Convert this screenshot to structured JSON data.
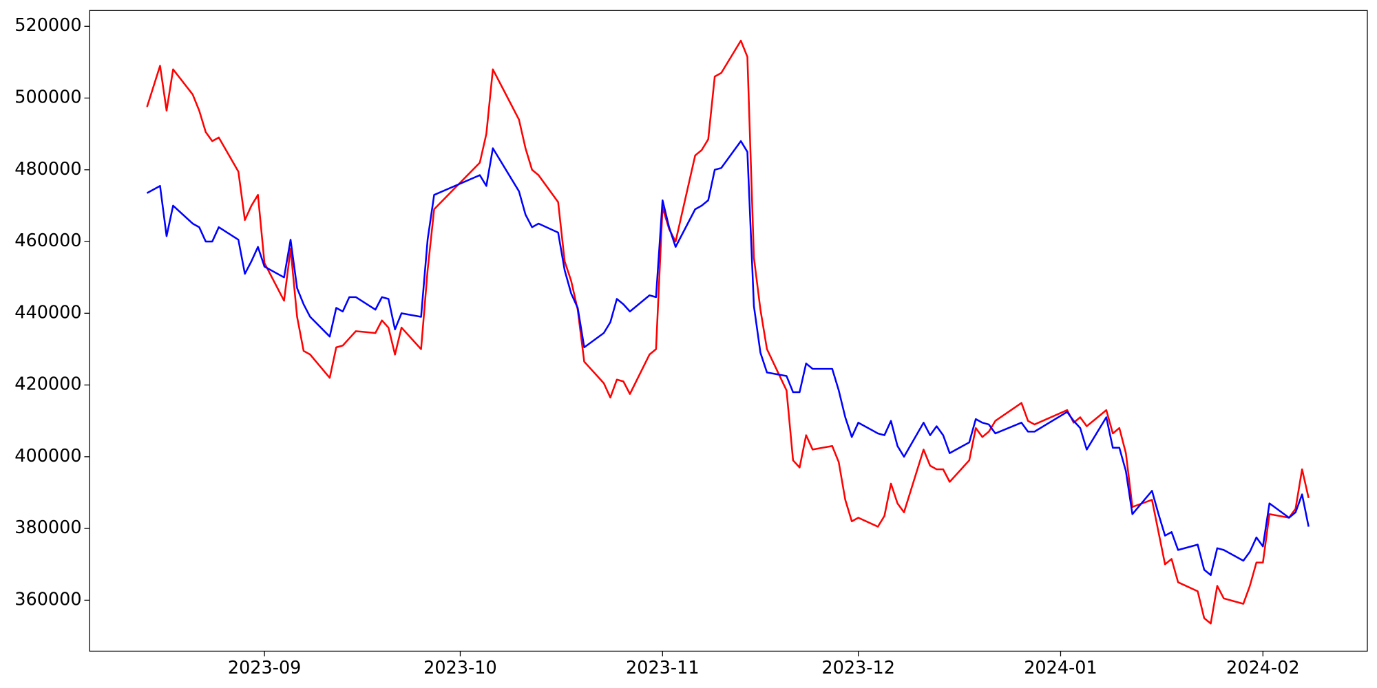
{
  "chart_data": {
    "type": "line",
    "x": [
      -18,
      -16,
      -15,
      -14,
      -11,
      -10,
      -9,
      -8,
      -7,
      -4,
      -3,
      -2,
      -1,
      0,
      3,
      4,
      5,
      6,
      7,
      10,
      11,
      12,
      13,
      14,
      17,
      18,
      19,
      20,
      21,
      24,
      25,
      26,
      33,
      34,
      35,
      39,
      40,
      41,
      42,
      45,
      46,
      47,
      48,
      49,
      52,
      53,
      54,
      55,
      56,
      59,
      60,
      61,
      62,
      63,
      66,
      67,
      68,
      69,
      70,
      73,
      74,
      75,
      76,
      77,
      80,
      81,
      82,
      83,
      84,
      87,
      88,
      89,
      90,
      91,
      94,
      95,
      96,
      97,
      98,
      101,
      102,
      103,
      104,
      105,
      108,
      109,
      110,
      111,
      112,
      116,
      117,
      118,
      123,
      124,
      125,
      126,
      129,
      130,
      131,
      132,
      133,
      136,
      137,
      138,
      139,
      140,
      143,
      144,
      145,
      146,
      147,
      150,
      151,
      152,
      153,
      154,
      157,
      158,
      159,
      160
    ],
    "series": [
      {
        "color": "#ff0000",
        "values": [
          497500,
          509000,
          496500,
          508000,
          501000,
          496500,
          490500,
          488000,
          489000,
          479500,
          466000,
          470000,
          473000,
          454000,
          443500,
          458000,
          439000,
          429500,
          428500,
          422000,
          430500,
          431000,
          433000,
          435000,
          434500,
          438000,
          436000,
          428500,
          436000,
          430000,
          452000,
          469000,
          482000,
          490000,
          508000,
          494000,
          486000,
          480000,
          478500,
          471000,
          454500,
          449000,
          441000,
          426500,
          420500,
          416500,
          421500,
          421000,
          417500,
          428500,
          430000,
          469500,
          463500,
          460000,
          484000,
          485500,
          488500,
          506000,
          507000,
          516000,
          511500,
          455500,
          441000,
          430000,
          418500,
          399000,
          397000,
          406000,
          402000,
          403000,
          398500,
          388000,
          382000,
          383000,
          380500,
          383500,
          392500,
          387000,
          384500,
          402000,
          397500,
          396500,
          396500,
          393000,
          399000,
          408000,
          405500,
          407000,
          410000,
          415000,
          410000,
          409000,
          413000,
          409500,
          411000,
          408500,
          413000,
          406500,
          408000,
          401000,
          386000,
          388000,
          379000,
          370000,
          371500,
          365000,
          362500,
          355000,
          353500,
          364000,
          360500,
          359000,
          364000,
          370500,
          370500,
          384000,
          383000,
          385500,
          396500,
          388500
        ]
      },
      {
        "color": "#0000ff",
        "values": [
          473500,
          475500,
          461500,
          470000,
          465000,
          464000,
          460000,
          460000,
          464000,
          460500,
          451000,
          454500,
          458500,
          453000,
          450000,
          460500,
          447000,
          442500,
          439000,
          433500,
          441500,
          440500,
          444500,
          444500,
          441000,
          444500,
          444000,
          435500,
          440000,
          439000,
          460500,
          473000,
          478500,
          475500,
          486000,
          474000,
          467500,
          464000,
          465000,
          462500,
          452000,
          445500,
          441500,
          430500,
          434500,
          437500,
          444000,
          442500,
          440500,
          445000,
          444500,
          471500,
          464000,
          458500,
          469000,
          470000,
          471500,
          480000,
          480500,
          488000,
          485000,
          442000,
          429000,
          423500,
          422500,
          418000,
          418000,
          426000,
          424500,
          424500,
          418500,
          411000,
          405500,
          409500,
          406500,
          406000,
          410000,
          403000,
          400000,
          409500,
          406000,
          408500,
          406000,
          401000,
          404000,
          410500,
          409500,
          409000,
          406500,
          409500,
          407000,
          407000,
          412500,
          410000,
          408000,
          402000,
          411000,
          402500,
          402500,
          396000,
          384000,
          390500,
          384000,
          378000,
          379000,
          374000,
          375500,
          368500,
          367000,
          374500,
          374000,
          371000,
          373500,
          377500,
          375000,
          387000,
          383000,
          384500,
          389500,
          380500
        ]
      }
    ],
    "xlim": [
      -26.8,
      169
    ],
    "xticks": [
      {
        "value": 0,
        "label": "2023-09"
      },
      {
        "value": 30,
        "label": "2023-10"
      },
      {
        "value": 61,
        "label": "2023-11"
      },
      {
        "value": 91,
        "label": "2023-12"
      },
      {
        "value": 122,
        "label": "2024-01"
      },
      {
        "value": 153,
        "label": "2024-02"
      }
    ],
    "ylim": [
      345800,
      524400
    ],
    "yticks": [
      360000,
      380000,
      400000,
      420000,
      440000,
      460000,
      480000,
      500000,
      520000
    ]
  }
}
